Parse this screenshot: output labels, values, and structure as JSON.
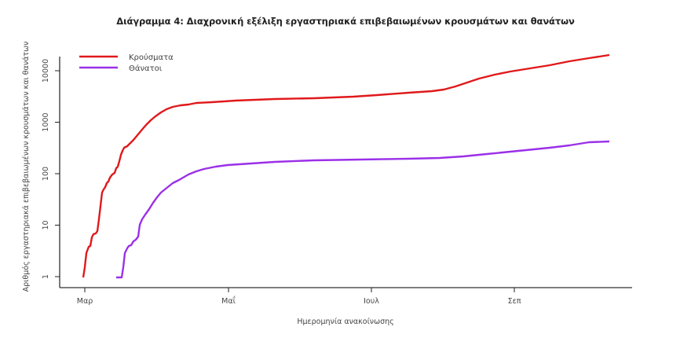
{
  "chart_data": {
    "type": "line",
    "title": "Διάγραμμα 4: Διαχρονική εξέλιξη εργαστηριακά επιβεβαιωμένων κρουσμάτων και θανάτων",
    "xlabel": "Ημερομηνία ανακοίνωσης",
    "ylabel": "Αριθμός εργαστηριακά επιβεβαιωμένων κρουσμάτων και θανάτων",
    "y_scale": "log",
    "ylim": [
      1,
      25000
    ],
    "y_ticks": [
      1,
      10,
      100,
      1000,
      10000
    ],
    "y_tick_labels": [
      "1",
      "10",
      "100",
      "1000",
      "10000"
    ],
    "x_ticks": [
      "Μαρ",
      "Μαΐ",
      "Ιουλ",
      "Σεπ"
    ],
    "x_tick_dates": [
      "2020-03-01",
      "2020-05-01",
      "2020-07-01",
      "2020-09-01"
    ],
    "grid": false,
    "legend_position": "top-left",
    "series": [
      {
        "name": "Κρούσματα",
        "color": "#e0191b",
        "x": [
          "2020-02-26",
          "2020-02-27",
          "2020-02-28",
          "2020-02-29",
          "2020-03-01",
          "2020-03-03",
          "2020-03-04",
          "2020-03-05",
          "2020-03-06",
          "2020-03-07",
          "2020-03-09",
          "2020-03-10",
          "2020-03-12",
          "2020-03-13",
          "2020-03-15",
          "2020-03-17",
          "2020-03-20",
          "2020-03-24",
          "2020-03-28",
          "2020-04-02",
          "2020-04-09",
          "2020-04-19",
          "2020-04-29",
          "2020-05-16",
          "2020-06-08",
          "2020-06-28",
          "2020-07-11",
          "2020-07-25",
          "2020-08-01",
          "2020-08-11",
          "2020-08-24",
          "2020-09-10",
          "2020-09-27",
          "2020-10-06"
        ],
        "values": [
          1,
          3,
          4,
          6,
          7,
          14,
          43,
          55,
          67,
          87,
          103,
          137,
          233,
          317,
          380,
          450,
          710,
          1100,
          1600,
          2000,
          2200,
          2400,
          2600,
          2800,
          3000,
          3300,
          3700,
          4200,
          4800,
          7000,
          9600,
          12800,
          17700,
          20000
        ]
      },
      {
        "name": "Θάνατοι",
        "color": "#9b30e8",
        "x": [
          "2020-03-10",
          "2020-03-12",
          "2020-03-14",
          "2020-03-15",
          "2020-03-17",
          "2020-03-19",
          "2020-03-20",
          "2020-03-22",
          "2020-03-26",
          "2020-03-29",
          "2020-04-01",
          "2020-04-05",
          "2020-04-10",
          "2020-04-17",
          "2020-04-27",
          "2020-05-07",
          "2020-05-17",
          "2020-06-03",
          "2020-06-23",
          "2020-07-13",
          "2020-08-02",
          "2020-08-15",
          "2020-08-29",
          "2020-09-11",
          "2020-09-28",
          "2020-10-06"
        ],
        "values": [
          1,
          1,
          3,
          4,
          5,
          6,
          12.6,
          18,
          28,
          43,
          57,
          73,
          96,
          123,
          147,
          158,
          170,
          180,
          188,
          194,
          217,
          240,
          277,
          318,
          410,
          420
        ]
      }
    ]
  },
  "px": {
    "red": [
      [
        106,
        353
      ],
      [
        108,
        340
      ],
      [
        110,
        322
      ],
      [
        113,
        314
      ],
      [
        115,
        313
      ],
      [
        117,
        302
      ],
      [
        119,
        298
      ],
      [
        122,
        297
      ],
      [
        124,
        294
      ],
      [
        126,
        279
      ],
      [
        128,
        262
      ],
      [
        130,
        245
      ],
      [
        132,
        241
      ],
      [
        134,
        238
      ],
      [
        136,
        233
      ],
      [
        138,
        231
      ],
      [
        140,
        226
      ],
      [
        143,
        222
      ],
      [
        146,
        220
      ],
      [
        148,
        214
      ],
      [
        150,
        212
      ],
      [
        152,
        205
      ],
      [
        154,
        197
      ],
      [
        156,
        192
      ],
      [
        158,
        188
      ],
      [
        162,
        186
      ],
      [
        165,
        183
      ],
      [
        168,
        180
      ],
      [
        170,
        178
      ],
      [
        175,
        172
      ],
      [
        180,
        166
      ],
      [
        186,
        159
      ],
      [
        192,
        153
      ],
      [
        198,
        148
      ],
      [
        205,
        143
      ],
      [
        212,
        139
      ],
      [
        220,
        136
      ],
      [
        230,
        134
      ],
      [
        240,
        133
      ],
      [
        250,
        131
      ],
      [
        270,
        130
      ],
      [
        300,
        128
      ],
      [
        350,
        126
      ],
      [
        400,
        125
      ],
      [
        450,
        123
      ],
      [
        480,
        121
      ],
      [
        520,
        118
      ],
      [
        550,
        116
      ],
      [
        565,
        114
      ],
      [
        580,
        110
      ],
      [
        595,
        105
      ],
      [
        610,
        100
      ],
      [
        630,
        95
      ],
      [
        650,
        91
      ],
      [
        675,
        87
      ],
      [
        700,
        83
      ],
      [
        725,
        78
      ],
      [
        750,
        74
      ],
      [
        776,
        70
      ]
    ],
    "purple": [
      [
        148,
        353
      ],
      [
        155,
        353
      ],
      [
        157,
        340
      ],
      [
        159,
        322
      ],
      [
        162,
        316
      ],
      [
        164,
        313
      ],
      [
        167,
        312
      ],
      [
        170,
        307
      ],
      [
        173,
        305
      ],
      [
        176,
        301
      ],
      [
        178,
        286
      ],
      [
        181,
        279
      ],
      [
        185,
        273
      ],
      [
        190,
        266
      ],
      [
        195,
        258
      ],
      [
        200,
        251
      ],
      [
        205,
        245
      ],
      [
        210,
        241
      ],
      [
        215,
        237
      ],
      [
        220,
        233
      ],
      [
        228,
        229
      ],
      [
        240,
        222
      ],
      [
        250,
        218
      ],
      [
        260,
        215
      ],
      [
        275,
        212
      ],
      [
        290,
        210
      ],
      [
        320,
        208
      ],
      [
        350,
        206
      ],
      [
        400,
        204
      ],
      [
        460,
        203
      ],
      [
        520,
        202
      ],
      [
        560,
        201
      ],
      [
        590,
        199
      ],
      [
        620,
        196
      ],
      [
        640,
        194
      ],
      [
        660,
        192
      ],
      [
        680,
        190
      ],
      [
        700,
        188
      ],
      [
        725,
        185
      ],
      [
        750,
        181
      ],
      [
        776,
        180
      ]
    ]
  },
  "legend": {
    "items": [
      {
        "label": "Κρούσματα",
        "color": "#e0191b"
      },
      {
        "label": "Θάνατοι",
        "color": "#9b30e8"
      }
    ]
  }
}
